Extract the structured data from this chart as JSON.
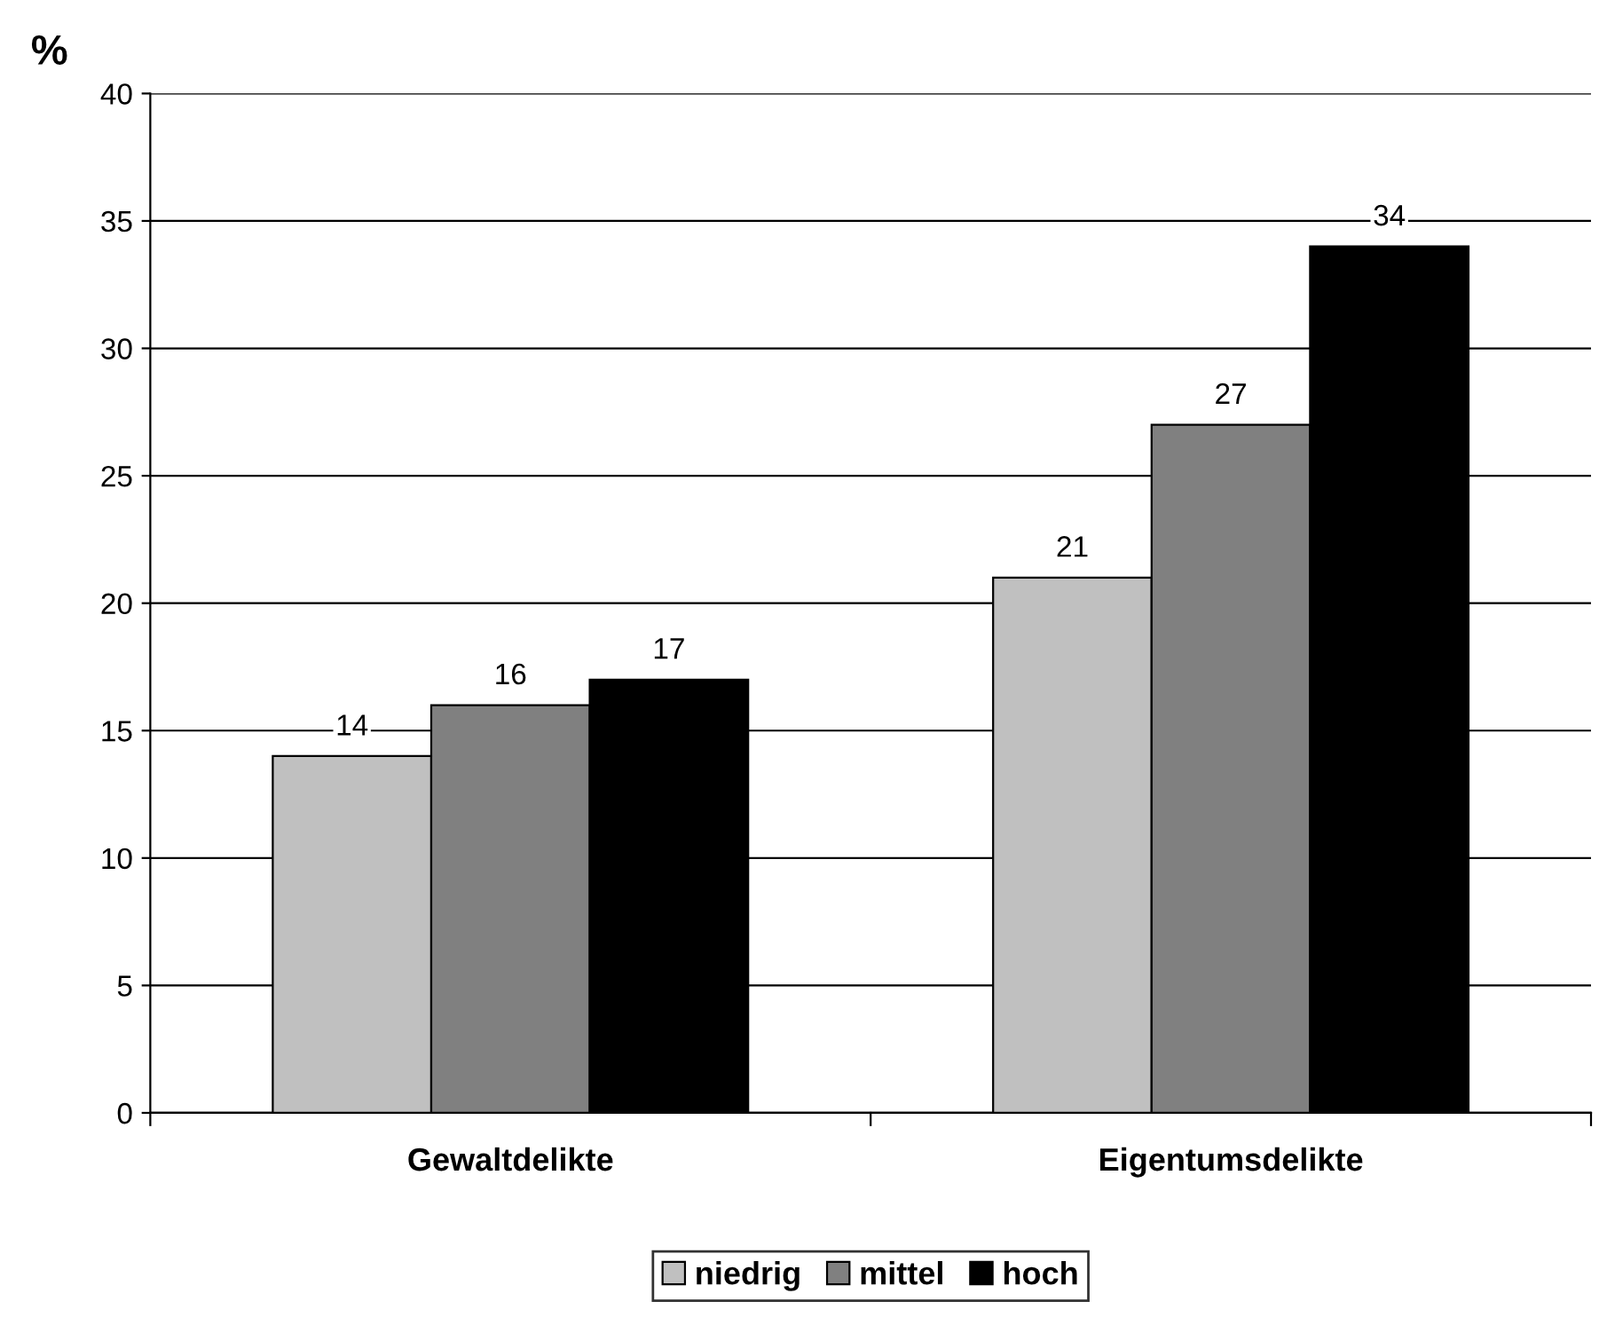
{
  "chart_data": {
    "type": "bar",
    "ylabel": "%",
    "categories": [
      "Gewaltdelikte",
      "Eigentumsdelikte"
    ],
    "series": [
      {
        "name": "niedrig",
        "color": "#c0c0c0",
        "values": [
          14,
          21
        ]
      },
      {
        "name": "mittel",
        "color": "#808080",
        "values": [
          16,
          27
        ]
      },
      {
        "name": "hoch",
        "color": "#000000",
        "values": [
          17,
          34
        ]
      }
    ],
    "ylim": [
      0,
      40
    ],
    "yticks": [
      0,
      5,
      10,
      15,
      20,
      25,
      30,
      35,
      40
    ],
    "grid": "y",
    "legend": "bottom",
    "data_labels": true
  }
}
